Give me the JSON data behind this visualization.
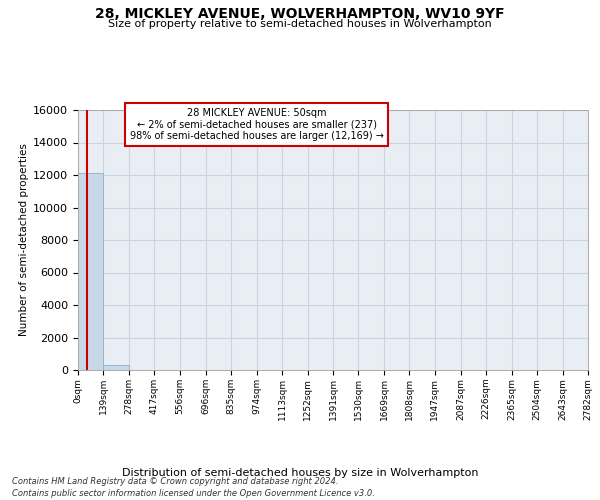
{
  "title_line1": "28, MICKLEY AVENUE, WOLVERHAMPTON, WV10 9YF",
  "title_line2": "Size of property relative to semi-detached houses in Wolverhampton",
  "xlabel": "Distribution of semi-detached houses by size in Wolverhampton",
  "ylabel": "Number of semi-detached properties",
  "property_size": 50,
  "property_name": "28 MICKLEY AVENUE",
  "pct_smaller": 2,
  "n_smaller": 237,
  "pct_larger": 98,
  "n_larger": 12169,
  "bin_width": 139,
  "bin_edges": [
    0,
    139,
    278,
    417,
    556,
    696,
    835,
    974,
    1113,
    1252,
    1391,
    1530,
    1669,
    1808,
    1947,
    2087,
    2226,
    2365,
    2504,
    2643,
    2782
  ],
  "bar_heights": [
    12100,
    300,
    6,
    2,
    1,
    1,
    0,
    0,
    0,
    0,
    0,
    0,
    0,
    0,
    0,
    0,
    0,
    0,
    0,
    0
  ],
  "bar_color": "#c8d8e8",
  "bar_edge_color": "#8ab0cc",
  "grid_color": "#c8d4e0",
  "bg_color": "#e8eef4",
  "red_line_color": "#cc0000",
  "annotation_border_color": "#cc0000",
  "ylim": [
    0,
    16000
  ],
  "yticks": [
    0,
    2000,
    4000,
    6000,
    8000,
    10000,
    12000,
    14000,
    16000
  ],
  "footer_line1": "Contains HM Land Registry data © Crown copyright and database right 2024.",
  "footer_line2": "Contains public sector information licensed under the Open Government Licence v3.0."
}
